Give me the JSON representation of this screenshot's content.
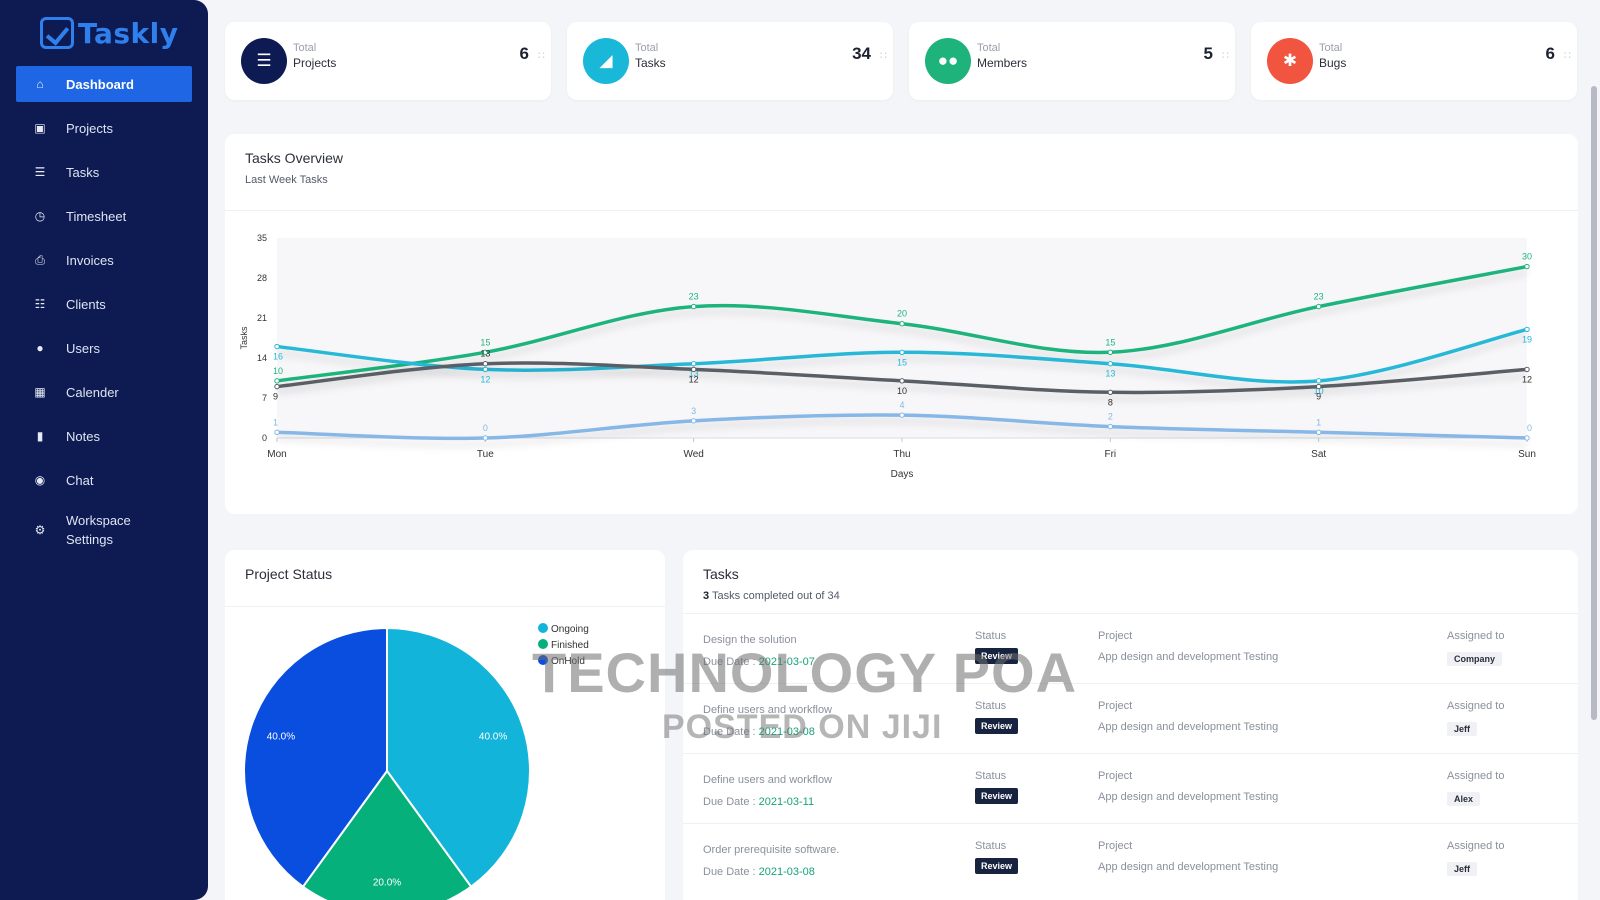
{
  "app": {
    "name": "Taskly"
  },
  "sidebar": {
    "items": [
      {
        "label": "Dashboard",
        "icon": "home-icon",
        "active": true
      },
      {
        "label": "Projects",
        "icon": "briefcase-icon"
      },
      {
        "label": "Tasks",
        "icon": "list-icon"
      },
      {
        "label": "Timesheet",
        "icon": "clock-icon"
      },
      {
        "label": "Invoices",
        "icon": "printer-icon"
      },
      {
        "label": "Clients",
        "icon": "sitemap-icon"
      },
      {
        "label": "Users",
        "icon": "user-icon"
      },
      {
        "label": "Calender",
        "icon": "calendar-icon"
      },
      {
        "label": "Notes",
        "icon": "clipboard-icon"
      },
      {
        "label": "Chat",
        "icon": "chat-icon"
      },
      {
        "label": "Workspace Settings",
        "icon": "cogs-icon"
      }
    ]
  },
  "stats": [
    {
      "sub": "Total",
      "label": "Projects",
      "value": "6",
      "color": "#0d1b52",
      "icon": "list-check-icon"
    },
    {
      "sub": "Total",
      "label": "Tasks",
      "value": "34",
      "color": "#1ab8d8",
      "icon": "tag-icon"
    },
    {
      "sub": "Total",
      "label": "Members",
      "value": "5",
      "color": "#1fb37c",
      "icon": "users-icon"
    },
    {
      "sub": "Total",
      "label": "Bugs",
      "value": "6",
      "color": "#f1543f",
      "icon": "bug-icon"
    }
  ],
  "overview": {
    "title": "Tasks Overview",
    "subtitle": "Last Week Tasks"
  },
  "chart_data": [
    {
      "type": "line",
      "title": "",
      "xlabel": "Days",
      "ylabel": "Tasks",
      "categories": [
        "Mon",
        "Tue",
        "Wed",
        "Thu",
        "Fri",
        "Sat",
        "Sun"
      ],
      "ylim": [
        0,
        35
      ],
      "yticks": [
        0,
        7,
        14,
        21,
        28,
        35
      ],
      "grid": false,
      "series": [
        {
          "color": "#1fb37c",
          "values": [
            10,
            15,
            23,
            20,
            15,
            23,
            30
          ]
        },
        {
          "color": "#26b8d6",
          "values": [
            16,
            12,
            13,
            15,
            13,
            10,
            19
          ]
        },
        {
          "color": "#5a5f66",
          "values": [
            9,
            13,
            12,
            10,
            8,
            9,
            12
          ]
        },
        {
          "color": "#86b7e6",
          "values": [
            1,
            0,
            3,
            4,
            2,
            1,
            0
          ]
        }
      ]
    },
    {
      "type": "pie",
      "title": "Project Status",
      "labels": [
        "Ongoing",
        "Finished",
        "OnHold"
      ],
      "values": [
        40.0,
        20.0,
        40.0
      ],
      "value_labels": [
        "40.0%",
        "20.0%",
        "40.0%"
      ],
      "colors": [
        "#12b4da",
        "#05b07a",
        "#0a4ee0"
      ],
      "legend": "top-right"
    }
  ],
  "project_status": {
    "title": "Project Status"
  },
  "tasks": {
    "title": "Tasks",
    "completed": "3",
    "summary": "Tasks completed out of 34",
    "status_label": "Status",
    "project_label": "Project",
    "assigned_label": "Assigned to",
    "due_label": "Due Date : ",
    "rows": [
      {
        "name": "Design the solution",
        "due": "2021-03-07",
        "status": "Review",
        "project": "App design and development Testing",
        "assignee": "Company"
      },
      {
        "name": "Define users and workflow",
        "due": "2021-03-08",
        "status": "Review",
        "project": "App design and development Testing",
        "assignee": "Jeff"
      },
      {
        "name": "Define users and workflow",
        "due": "2021-03-11",
        "status": "Review",
        "project": "App design and development Testing",
        "assignee": "Alex"
      },
      {
        "name": "Order prerequisite software.",
        "due": "2021-03-08",
        "status": "Review",
        "project": "App design and development Testing",
        "assignee": "Jeff"
      }
    ]
  },
  "watermark": {
    "line1": "TECHNOLOGY POA",
    "line2": "POSTED ON JIJI"
  }
}
